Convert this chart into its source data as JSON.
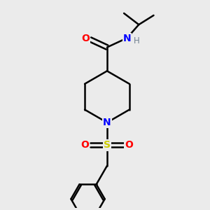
{
  "bg_color": "#ebebeb",
  "atom_colors": {
    "C": "#000000",
    "N": "#0000ff",
    "O": "#ff0000",
    "S": "#cccc00",
    "H": "#708090"
  },
  "bond_color": "#000000",
  "bond_width": 1.8,
  "figsize": [
    3.0,
    3.0
  ],
  "dpi": 100,
  "xlim": [
    0,
    10
  ],
  "ylim": [
    0,
    10
  ]
}
